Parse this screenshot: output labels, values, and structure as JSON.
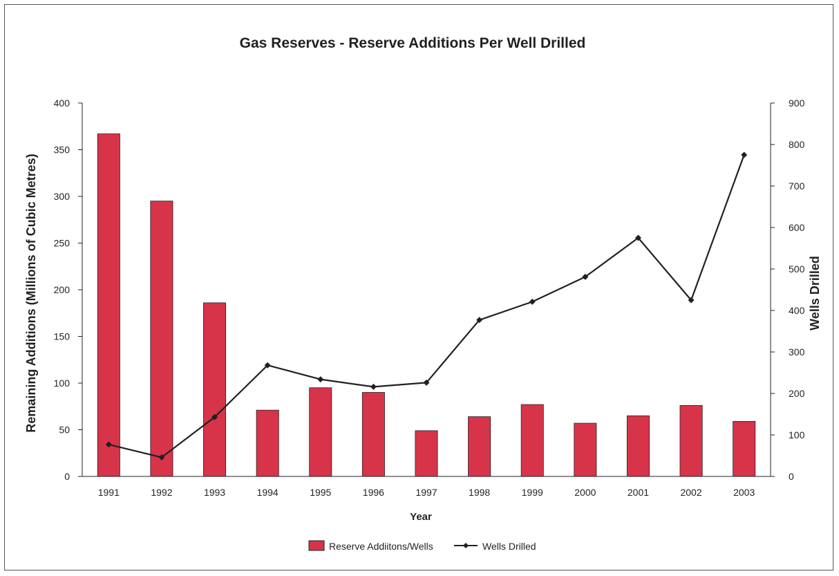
{
  "chart_data": {
    "type": "bar",
    "title": "Gas Reserves - Reserve Additions Per Well Drilled",
    "xlabel": "Year",
    "ylabel": "Remaining Additions (Millions of Cubic Metres)",
    "y2label": "Wells Drilled",
    "categories": [
      "1991",
      "1992",
      "1993",
      "1994",
      "1995",
      "1996",
      "1997",
      "1998",
      "1999",
      "2000",
      "2001",
      "2002",
      "2003"
    ],
    "ylim": [
      0,
      400
    ],
    "y2lim": [
      0,
      900
    ],
    "yticks": [
      0,
      50,
      100,
      150,
      200,
      250,
      300,
      350,
      400
    ],
    "y2ticks": [
      0,
      100,
      200,
      300,
      400,
      500,
      600,
      700,
      800,
      900
    ],
    "grid": false,
    "legend_position": "bottom",
    "series": [
      {
        "name": "Reserve Addiitons/Wells",
        "type": "bar",
        "axis": "left",
        "color": "#d7344a",
        "values": [
          367,
          295,
          186,
          71,
          95,
          90,
          49,
          64,
          77,
          57,
          65,
          76,
          59
        ]
      },
      {
        "name": "Wells Drilled",
        "type": "line",
        "axis": "right",
        "color": "#231f20",
        "marker": "diamond",
        "values": [
          77,
          46,
          143,
          268,
          234,
          216,
          226,
          377,
          421,
          481,
          575,
          425,
          775
        ]
      }
    ]
  }
}
